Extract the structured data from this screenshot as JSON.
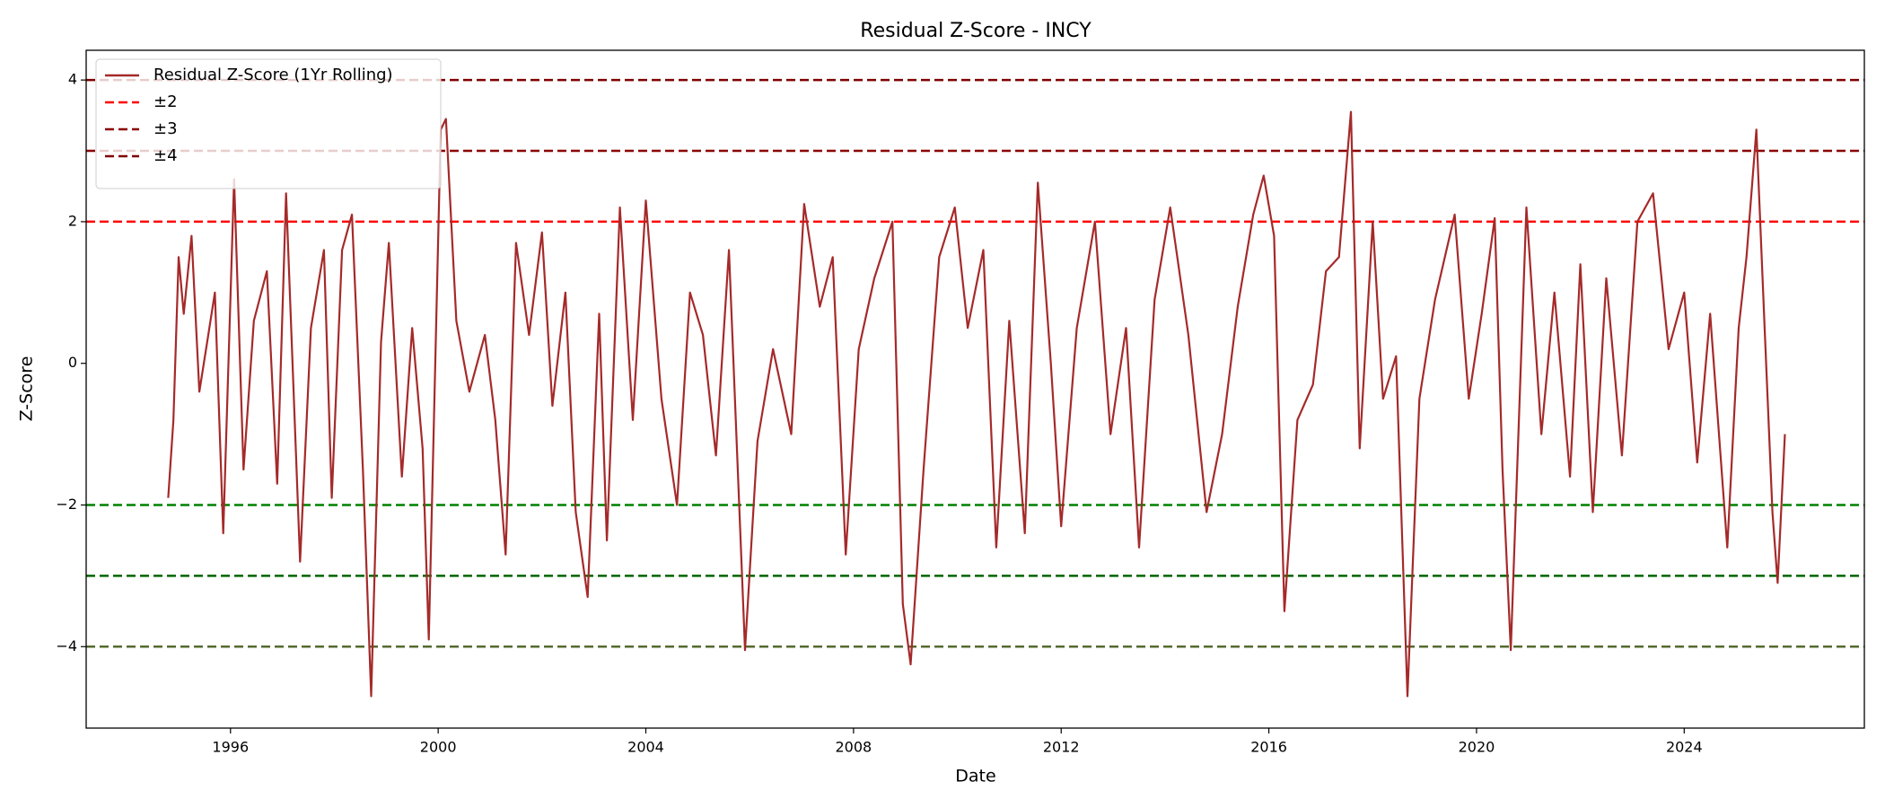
{
  "chart_data": {
    "type": "line",
    "title": "Residual Z-Score - INCY",
    "x_label": "Date",
    "y_label": "Z-Score",
    "xlim": [
      1993.22,
      2027.47
    ],
    "ylim": [
      -5.15,
      4.42
    ],
    "xticks": [
      1996,
      2000,
      2004,
      2008,
      2012,
      2016,
      2020,
      2024
    ],
    "yticks": [
      {
        "value": -4,
        "label": "−4"
      },
      {
        "value": -2,
        "label": "−2"
      },
      0,
      2,
      4
    ],
    "legend": "upper left",
    "series": [
      {
        "name": "Residual Z-Score (1Yr Rolling)",
        "color": "#a52a2a",
        "x": [
          1994.8,
          1994.9,
          1995.0,
          1995.1,
          1995.25,
          1995.4,
          1995.55,
          1995.7,
          1995.86,
          1996.07,
          1996.25,
          1996.45,
          1996.7,
          1996.9,
          1997.07,
          1997.34,
          1997.55,
          1997.8,
          1997.95,
          1998.15,
          1998.34,
          1998.55,
          1998.71,
          1998.9,
          1999.05,
          1999.3,
          1999.5,
          1999.7,
          1999.82,
          2000.05,
          2000.15,
          2000.35,
          2000.6,
          2000.9,
          2001.1,
          2001.3,
          2001.5,
          2001.75,
          2002.0,
          2002.2,
          2002.45,
          2002.65,
          2002.88,
          2003.1,
          2003.25,
          2003.5,
          2003.75,
          2004.0,
          2004.3,
          2004.6,
          2004.85,
          2005.1,
          2005.35,
          2005.6,
          2005.91,
          2006.15,
          2006.45,
          2006.8,
          2007.05,
          2007.35,
          2007.6,
          2007.85,
          2008.1,
          2008.4,
          2008.75,
          2008.95,
          2009.1,
          2009.35,
          2009.65,
          2009.95,
          2010.2,
          2010.5,
          2010.75,
          2011.0,
          2011.3,
          2011.55,
          2011.8,
          2012.0,
          2012.3,
          2012.65,
          2012.95,
          2013.25,
          2013.5,
          2013.8,
          2014.1,
          2014.45,
          2014.8,
          2015.1,
          2015.4,
          2015.7,
          2015.9,
          2016.1,
          2016.3,
          2016.55,
          2016.85,
          2017.1,
          2017.35,
          2017.58,
          2017.75,
          2018.0,
          2018.2,
          2018.45,
          2018.67,
          2018.9,
          2019.2,
          2019.58,
          2019.85,
          2020.1,
          2020.35,
          2020.5,
          2020.66,
          2020.96,
          2021.25,
          2021.5,
          2021.8,
          2022.0,
          2022.24,
          2022.5,
          2022.8,
          2023.1,
          2023.4,
          2023.7,
          2024.0,
          2024.25,
          2024.5,
          2024.83,
          2025.05,
          2025.2,
          2025.39,
          2025.55,
          2025.7,
          2025.8,
          2025.94
        ],
        "values": [
          -1.9,
          -0.8,
          1.5,
          0.7,
          1.8,
          -0.4,
          0.3,
          1.0,
          -2.4,
          2.6,
          -1.5,
          0.6,
          1.3,
          -1.7,
          2.4,
          -2.8,
          0.5,
          1.6,
          -1.9,
          1.6,
          2.1,
          -1.5,
          -4.7,
          0.3,
          1.7,
          -1.6,
          0.5,
          -1.2,
          -3.9,
          3.3,
          3.45,
          0.6,
          -0.4,
          0.4,
          -0.8,
          -2.7,
          1.7,
          0.4,
          1.85,
          -0.6,
          1.0,
          -2.1,
          -3.3,
          0.7,
          -2.5,
          2.2,
          -0.8,
          2.3,
          -0.5,
          -2.0,
          1.0,
          0.4,
          -1.3,
          1.6,
          -4.05,
          -1.1,
          0.2,
          -1.0,
          2.25,
          0.8,
          1.5,
          -2.7,
          0.2,
          1.2,
          2.0,
          -3.4,
          -4.25,
          -1.5,
          1.5,
          2.2,
          0.5,
          1.6,
          -2.6,
          0.6,
          -2.4,
          2.55,
          0.0,
          -2.3,
          0.5,
          2.0,
          -1.0,
          0.5,
          -2.6,
          0.9,
          2.2,
          0.4,
          -2.1,
          -1.0,
          0.8,
          2.1,
          2.65,
          1.8,
          -3.5,
          -0.8,
          -0.3,
          1.3,
          1.5,
          3.55,
          -1.2,
          2.0,
          -0.5,
          0.1,
          -4.7,
          -0.5,
          0.9,
          2.1,
          -0.5,
          0.7,
          2.05,
          -1.5,
          -4.05,
          2.2,
          -1.0,
          1.0,
          -1.6,
          1.4,
          -2.1,
          1.2,
          -1.3,
          2.0,
          2.4,
          0.2,
          1.0,
          -1.4,
          0.7,
          -2.6,
          0.5,
          1.5,
          3.3,
          0.5,
          -2.1,
          -3.1,
          -1.0
        ]
      }
    ],
    "reference_lines": [
      {
        "name": "±2",
        "values": [
          2,
          -2
        ],
        "colors": [
          "#ff0000",
          "#008000"
        ]
      },
      {
        "name": "±3",
        "values": [
          3,
          -3
        ],
        "colors": [
          "#8b0000",
          "#006400"
        ]
      },
      {
        "name": "±4",
        "values": [
          4,
          -4
        ],
        "colors": [
          "#800000",
          "#556b2f"
        ]
      }
    ]
  }
}
